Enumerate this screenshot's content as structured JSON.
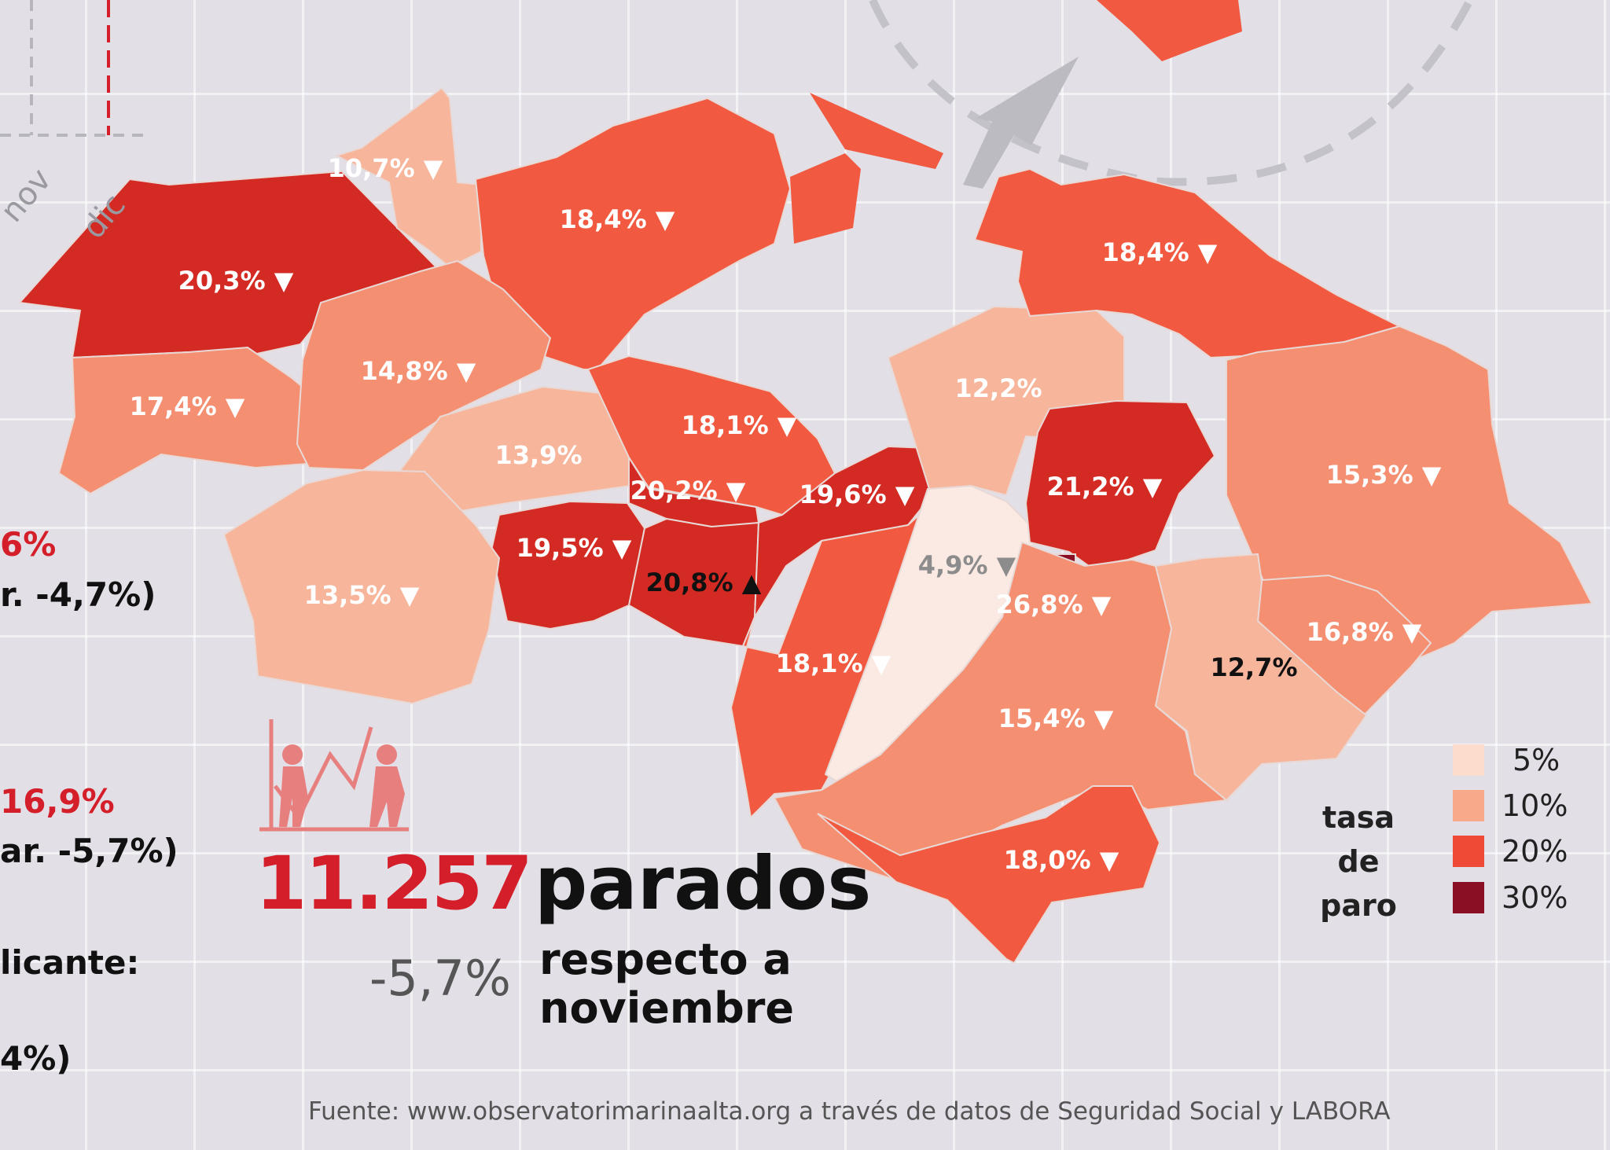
{
  "axis_months": [
    "nov",
    "dic"
  ],
  "side_values": [
    {
      "text": "6%",
      "style": "red"
    },
    {
      "text": "r. -4,7%)",
      "style": "dark"
    },
    {
      "text": "16,9%",
      "style": "red"
    },
    {
      "text": "ar. -5,7%)",
      "style": "dark"
    },
    {
      "text": "licante:",
      "style": "dark"
    },
    {
      "text": "4%)",
      "style": "dark"
    }
  ],
  "regions": [
    {
      "id": "r1",
      "value": "20,3%",
      "trend": "down",
      "rate": 20.3
    },
    {
      "id": "r2",
      "value": "10,7%",
      "trend": "down",
      "rate": 10.7
    },
    {
      "id": "r3",
      "value": "18,4%",
      "trend": "down",
      "rate": 18.4
    },
    {
      "id": "r4",
      "value": "17,4%",
      "trend": "down",
      "rate": 17.4
    },
    {
      "id": "r5",
      "value": "14,8%",
      "trend": "down",
      "rate": 14.8
    },
    {
      "id": "r6",
      "value": "13,9%",
      "trend": "none",
      "rate": 13.9
    },
    {
      "id": "r7",
      "value": "18,1%",
      "trend": "down",
      "rate": 18.1
    },
    {
      "id": "r8",
      "value": "20,2%",
      "trend": "down",
      "rate": 20.2
    },
    {
      "id": "r9",
      "value": "19,5%",
      "trend": "down",
      "rate": 19.5
    },
    {
      "id": "r10",
      "value": "20,8%",
      "trend": "up",
      "rate": 20.8
    },
    {
      "id": "r11",
      "value": "19,6%",
      "trend": "down",
      "rate": 19.6
    },
    {
      "id": "r12",
      "value": "13,5%",
      "trend": "down",
      "rate": 13.5
    },
    {
      "id": "r13",
      "value": "18,1%",
      "trend": "down",
      "rate": 18.1
    },
    {
      "id": "r14",
      "value": "4,9%",
      "trend": "down",
      "rate": 4.9
    },
    {
      "id": "r15",
      "value": "12,2%",
      "trend": "none",
      "rate": 12.2
    },
    {
      "id": "r16",
      "value": "18,4%",
      "trend": "down",
      "rate": 18.4
    },
    {
      "id": "r17",
      "value": "21,2%",
      "trend": "down",
      "rate": 21.2
    },
    {
      "id": "r18",
      "value": "26,8%",
      "trend": "down",
      "rate": 26.8
    },
    {
      "id": "r19",
      "value": "15,3%",
      "trend": "down",
      "rate": 15.3
    },
    {
      "id": "r20",
      "value": "16,8%",
      "trend": "down",
      "rate": 16.8
    },
    {
      "id": "r21",
      "value": "12,7%",
      "trend": "none",
      "rate": 12.7
    },
    {
      "id": "r22",
      "value": "15,4%",
      "trend": "down",
      "rate": 15.4
    },
    {
      "id": "r23",
      "value": "18,0%",
      "trend": "down",
      "rate": 18.0
    }
  ],
  "colors": {
    "c5": "#fbeae3",
    "c10": "#f7b59b",
    "c15": "#f58f72",
    "c20": "#f15a40",
    "c25": "#d42a24",
    "c30": "#8a0f24",
    "headline": "#d41f2a",
    "grey": "#555555"
  },
  "legend": {
    "title_line1": "tasa de",
    "title_line2": "paro",
    "items": [
      {
        "label": "5%",
        "color": "#fbdccd"
      },
      {
        "label": "10%",
        "color": "#f7a98a"
      },
      {
        "label": "20%",
        "color": "#ee4a36"
      },
      {
        "label": "30%",
        "color": "#8a0f24"
      }
    ]
  },
  "headline": {
    "number": "11.257",
    "label": "parados",
    "change": "-5,7%",
    "change_text_line1": "respecto a",
    "change_text_line2": "noviembre"
  },
  "source": "Fuente: www.observatorimarinaalta.org a través de datos de Seguridad Social y LABORA"
}
